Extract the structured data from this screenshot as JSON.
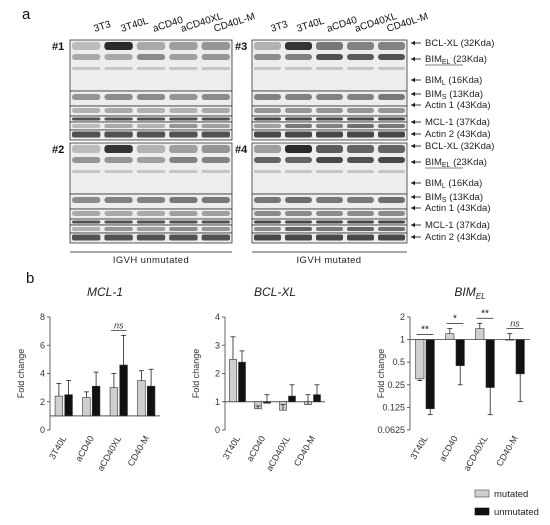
{
  "panel_a": {
    "letter": "a",
    "lanes": [
      "3T3",
      "3T40L",
      "aCD40",
      "aCD40XL",
      "CD40L-M"
    ],
    "blots": [
      {
        "num": "#1",
        "group": "unmutated"
      },
      {
        "num": "#3",
        "group": "mutated"
      },
      {
        "num": "#2",
        "group": "unmutated"
      },
      {
        "num": "#4",
        "group": "mutated"
      }
    ],
    "markers": [
      {
        "pre": "BCL-XL ",
        "sub": "",
        "post": "(32Kda)"
      },
      {
        "pre": "BIM",
        "sub": "EL",
        "post": " (23Kda)"
      },
      {
        "pre": "BIM",
        "sub": "L",
        "post": " (16Kda)"
      },
      {
        "pre": "BIM",
        "sub": "S",
        "post": " (13Kda)"
      },
      {
        "pre": "Actin 1 ",
        "sub": "",
        "post": "(43Kda)"
      },
      {
        "pre": "MCL-1 ",
        "sub": "",
        "post": "(37Kda)"
      },
      {
        "pre": "Actin 2 ",
        "sub": "",
        "post": "(43Kda)"
      }
    ],
    "group_labels": {
      "unmutated": "IGVH unmutated",
      "mutated": "IGVH mutated"
    }
  },
  "panel_b": {
    "letter": "b"
  },
  "legend": {
    "mutated": "mutated",
    "unmutated": "unmutated"
  },
  "colors": {
    "mutated": "#cfcfcf",
    "unmutated": "#111111",
    "band": "#2a2a2a",
    "blot_bg": "#ededed"
  },
  "chart_data": [
    {
      "type": "bar",
      "title": "MCL-1",
      "ylabel": "Fold change",
      "categories": [
        "3T40L",
        "aCD40",
        "aCD40XL",
        "CD40-M"
      ],
      "yscale": "linear",
      "ylim": [
        0,
        8
      ],
      "yticks": [
        0,
        2,
        4,
        6,
        8
      ],
      "baseline": 1,
      "series": [
        {
          "name": "mutated",
          "values": [
            2.4,
            2.3,
            3.0,
            3.5
          ],
          "err": [
            0.9,
            0.4,
            1.0,
            0.7
          ]
        },
        {
          "name": "unmutated",
          "values": [
            2.5,
            3.1,
            4.6,
            3.1
          ],
          "err": [
            1.0,
            1.0,
            2.1,
            1.2
          ]
        }
      ],
      "annotations": [
        {
          "category_index": 2,
          "label": "ns"
        }
      ]
    },
    {
      "type": "bar",
      "title": "BCL-XL",
      "ylabel": "Fold change",
      "categories": [
        "3T40L",
        "aCD40",
        "aCD40XL",
        "CD40-M"
      ],
      "yscale": "linear",
      "ylim": [
        0,
        4
      ],
      "yticks": [
        0,
        1,
        2,
        3,
        4
      ],
      "baseline": 1,
      "series": [
        {
          "name": "mutated",
          "values": [
            2.5,
            0.75,
            0.7,
            0.9
          ],
          "err": [
            0.8,
            0.1,
            0.2,
            0.35
          ]
        },
        {
          "name": "unmutated",
          "values": [
            2.4,
            0.95,
            1.2,
            1.25
          ],
          "err": [
            0.4,
            0.3,
            0.4,
            0.35
          ]
        }
      ],
      "annotations": []
    },
    {
      "type": "bar",
      "title": "BIM",
      "title_sub": "EL",
      "ylabel": "Fold change",
      "categories": [
        "3T40L",
        "aCD40",
        "aCD40XL",
        "CD40-M"
      ],
      "yscale": "log2",
      "ylim": [
        0.0625,
        2
      ],
      "yticks": [
        2,
        1,
        0.5,
        0.25,
        0.125,
        0.0625
      ],
      "baseline": 1,
      "series": [
        {
          "name": "mutated",
          "values": [
            0.3,
            1.2,
            1.4,
            1.0
          ],
          "err_up": [
            0.05,
            0.2,
            0.25,
            0.2
          ],
          "err_down": [
            0.0,
            0.0,
            0.0,
            0.0
          ]
        },
        {
          "name": "unmutated",
          "values": [
            0.12,
            0.45,
            0.23,
            0.35
          ],
          "err_up": [
            0.0,
            0.0,
            0.0,
            0.0
          ],
          "err_down": [
            0.02,
            0.2,
            0.13,
            0.2
          ]
        }
      ],
      "annotations": [
        {
          "category_index": 0,
          "label": "**"
        },
        {
          "category_index": 1,
          "label": "*"
        },
        {
          "category_index": 2,
          "label": "**"
        },
        {
          "category_index": 3,
          "label": "ns"
        }
      ]
    }
  ]
}
